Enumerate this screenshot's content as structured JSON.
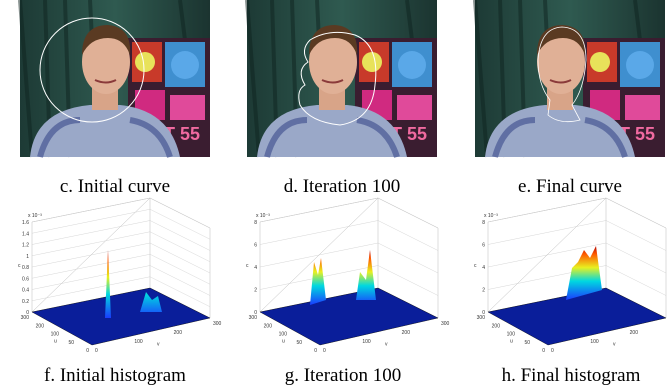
{
  "photos": [
    {
      "caption": "c. Initial curve"
    },
    {
      "caption": "d. Iteration 100"
    },
    {
      "caption": "e. Final curve"
    }
  ],
  "histograms": [
    {
      "caption": "f. Initial histogram",
      "exponent": "x 10⁻³",
      "z_label": "c",
      "z_ticks": [
        0,
        0.2,
        0.4,
        0.6,
        0.8,
        1,
        1.2,
        1.4,
        1.6
      ],
      "u_label": "u",
      "u_ticks": [
        300,
        200,
        100,
        50,
        0
      ],
      "v_label": "v",
      "v_ticks": [
        0,
        100,
        200,
        300
      ]
    },
    {
      "caption": "g. Iteration 100",
      "exponent": "x 10⁻³",
      "z_label": "c",
      "z_ticks": [
        0,
        2,
        4,
        6,
        8
      ],
      "u_label": "u",
      "u_ticks": [
        300,
        200,
        100,
        50,
        0
      ],
      "v_label": "v",
      "v_ticks": [
        0,
        100,
        200,
        300
      ]
    },
    {
      "caption": "h. Final histogram",
      "exponent": "x 10⁻³",
      "z_label": "c",
      "z_ticks": [
        0,
        2,
        4,
        6,
        8
      ],
      "u_label": "u",
      "u_ticks": [
        300,
        200,
        100,
        50,
        0
      ],
      "v_label": "v",
      "v_ticks": [
        0,
        100,
        200,
        300
      ]
    }
  ]
}
